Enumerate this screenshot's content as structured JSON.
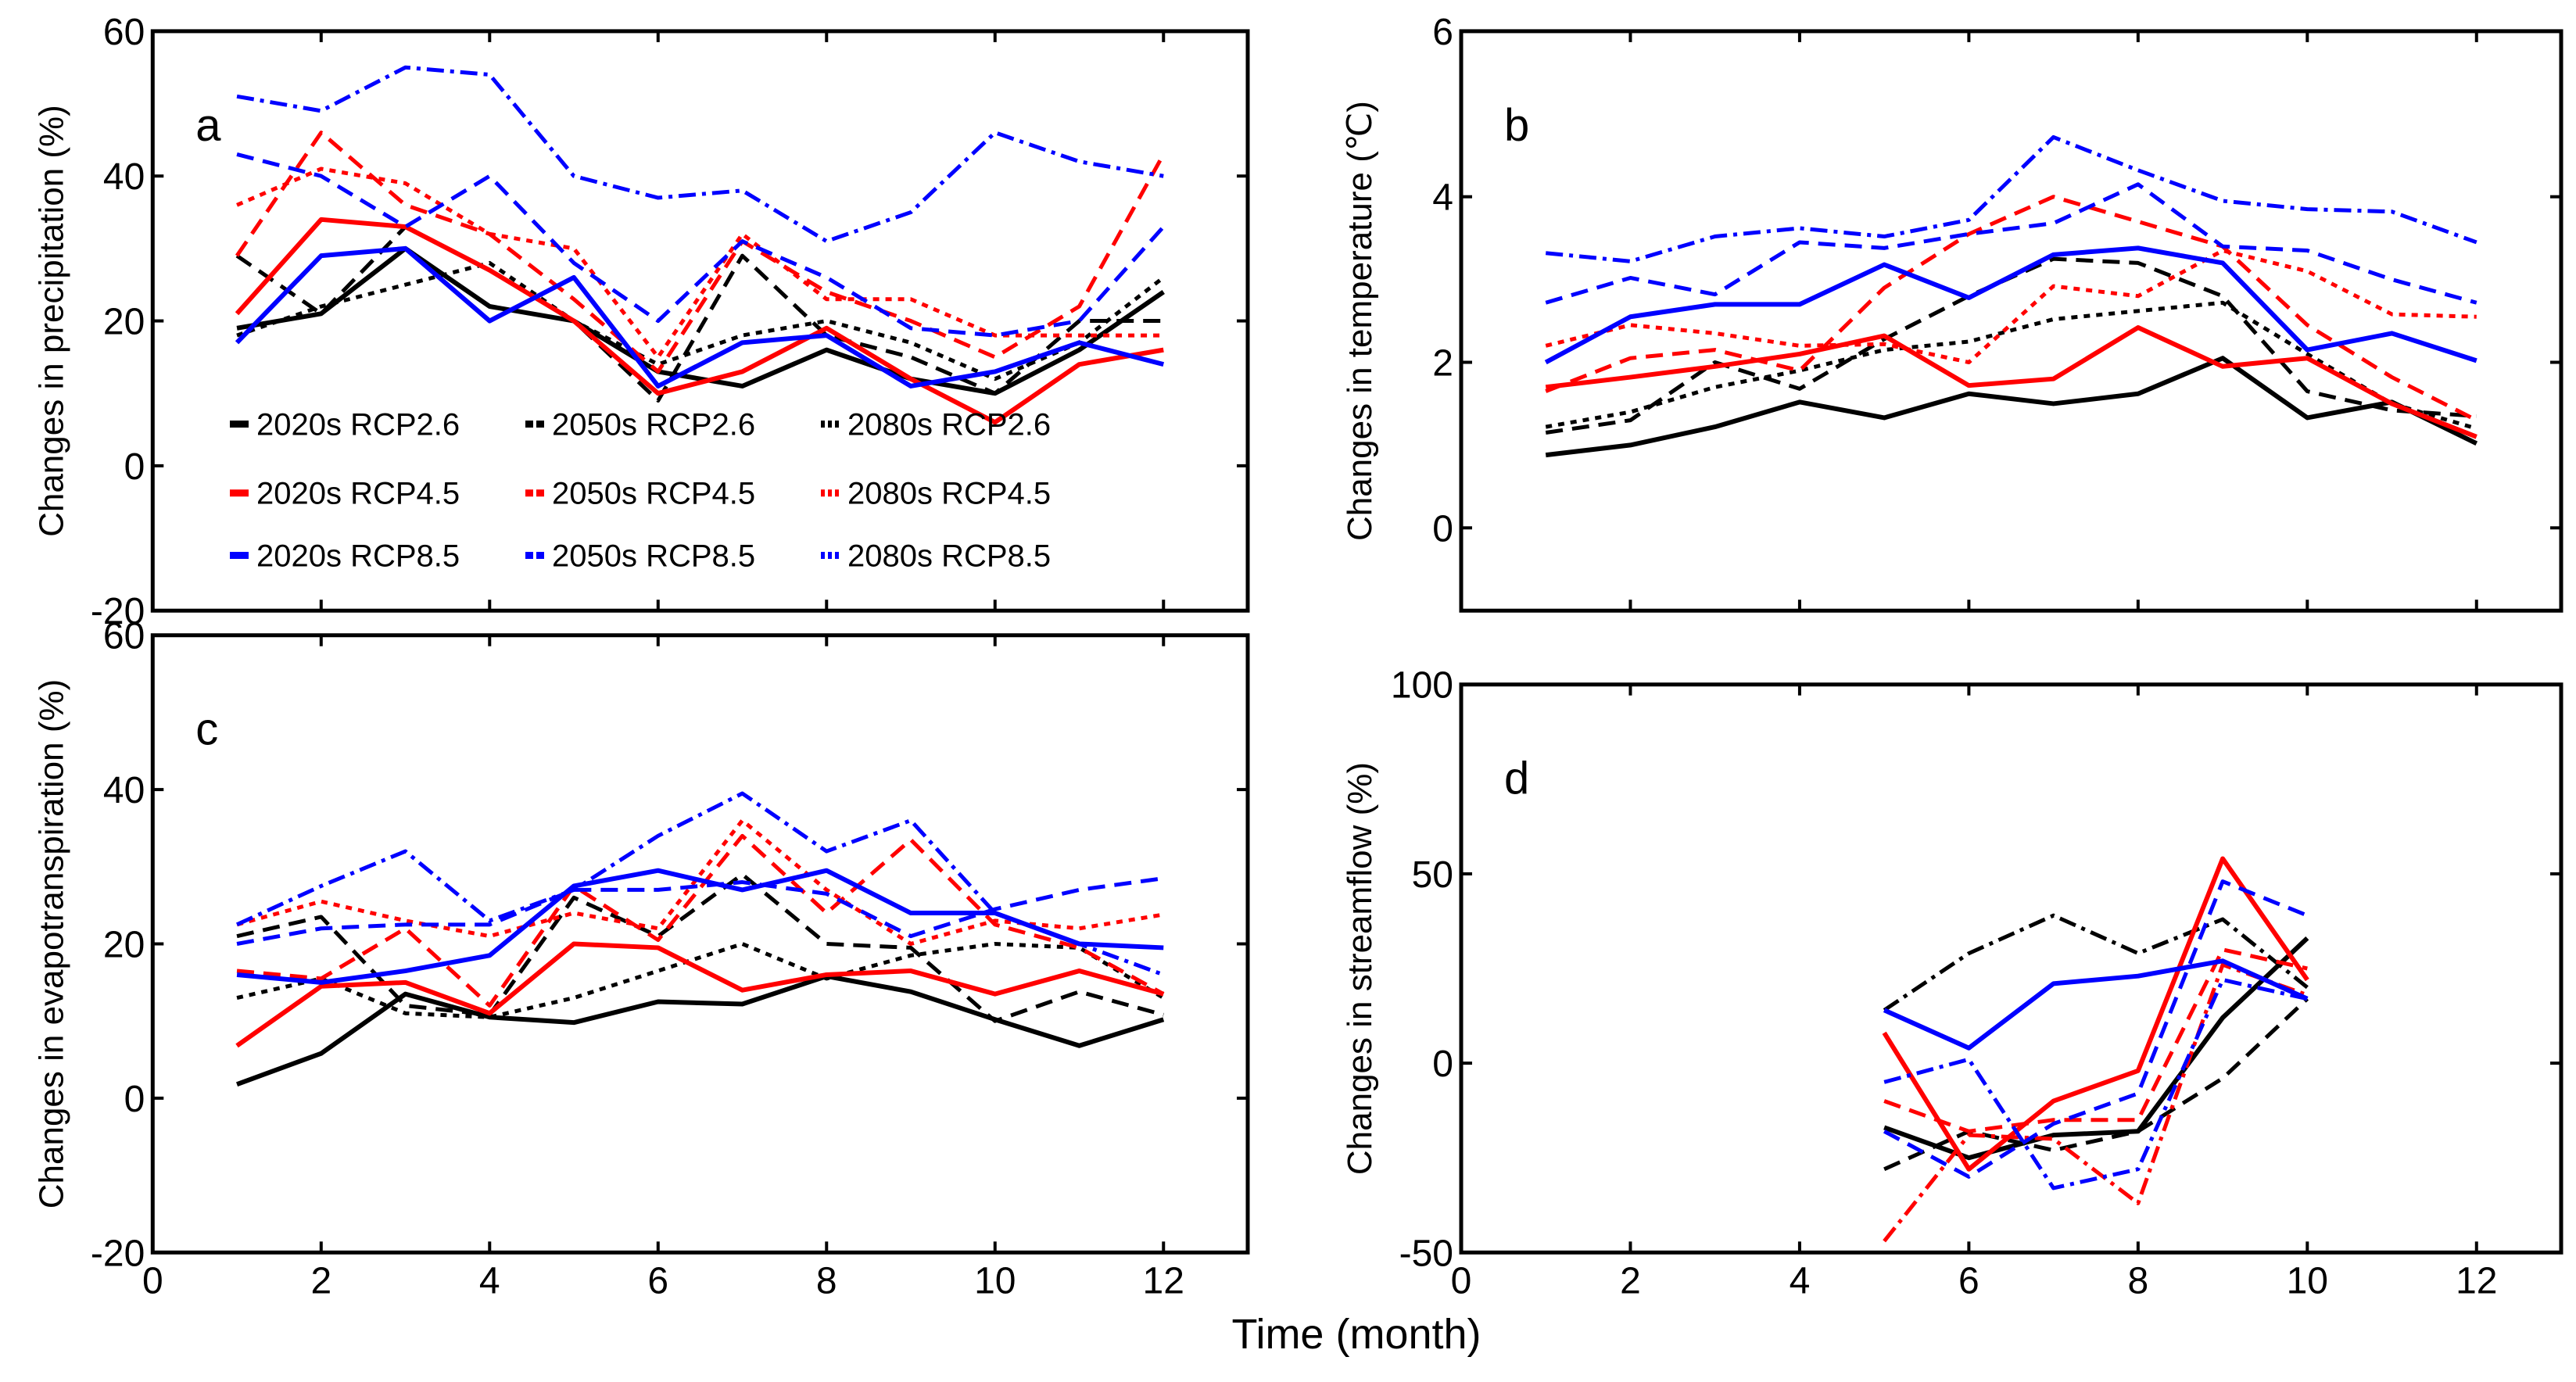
{
  "chart_data": [
    {
      "id": "a",
      "type": "line",
      "panel_letter": "a",
      "ylabel": "Changes in precipitation (%)",
      "xlabel": "",
      "xlim": [
        0,
        13
      ],
      "ylim": [
        -20,
        60
      ],
      "xticks": [
        0,
        2,
        4,
        6,
        8,
        10,
        12
      ],
      "yticks": [
        -20,
        0,
        20,
        40,
        60
      ],
      "show_xtick_labels": false,
      "legend": "inside-lower-left",
      "x": [
        1,
        2,
        3,
        4,
        5,
        6,
        7,
        8,
        9,
        10,
        11,
        12
      ],
      "series": [
        {
          "name": "2020s RCP2.6",
          "color": "#000000",
          "style": "solid",
          "values": [
            19,
            21,
            30,
            22,
            20,
            13,
            11,
            16,
            12,
            10,
            16,
            24
          ]
        },
        {
          "name": "2050s RCP2.6",
          "color": "#000000",
          "style": "dashed",
          "values": [
            29,
            21,
            33,
            27,
            20,
            9,
            29,
            18,
            15,
            10,
            20,
            20
          ]
        },
        {
          "name": "2080s RCP2.6",
          "color": "#000000",
          "style": "dotted",
          "values": [
            18,
            22,
            25,
            28,
            20,
            14,
            18,
            20,
            17,
            12,
            17,
            26
          ]
        },
        {
          "name": "2020s RCP4.5",
          "color": "#ff0000",
          "style": "solid",
          "values": [
            21,
            34,
            33,
            27,
            20,
            10,
            13,
            19,
            12,
            6,
            14,
            16
          ]
        },
        {
          "name": "2050s RCP4.5",
          "color": "#ff0000",
          "style": "dashed",
          "values": [
            29,
            46,
            36,
            32,
            23,
            13,
            31,
            24,
            20,
            15,
            22,
            43
          ]
        },
        {
          "name": "2080s RCP4.5",
          "color": "#ff0000",
          "style": "dotted",
          "values": [
            36,
            41,
            39,
            32,
            30,
            15,
            32,
            23,
            23,
            18,
            18,
            18
          ]
        },
        {
          "name": "2020s RCP8.5",
          "color": "#0000ff",
          "style": "solid",
          "values": [
            17,
            29,
            30,
            20,
            26,
            11,
            17,
            18,
            11,
            13,
            17,
            14
          ]
        },
        {
          "name": "2050s RCP8.5",
          "color": "#0000ff",
          "style": "dashed",
          "values": [
            43,
            40,
            33,
            40,
            28,
            20,
            31,
            26,
            19,
            18,
            20,
            33
          ]
        },
        {
          "name": "2080s RCP8.5",
          "color": "#0000ff",
          "style": "dashdot",
          "values": [
            51,
            49,
            55,
            54,
            40,
            37,
            38,
            31,
            35,
            46,
            42,
            40
          ]
        }
      ]
    },
    {
      "id": "b",
      "type": "line",
      "panel_letter": "b",
      "ylabel": "Changes in temperature (℃)",
      "xlabel": "",
      "xlim": [
        0,
        13
      ],
      "ylim": [
        -1,
        6
      ],
      "xticks": [
        0,
        2,
        4,
        6,
        8,
        10,
        12
      ],
      "yticks": [
        0,
        2,
        4,
        6
      ],
      "show_xtick_labels": false,
      "x": [
        1,
        2,
        3,
        4,
        5,
        6,
        7,
        8,
        9,
        10,
        11,
        12
      ],
      "series": [
        {
          "name": "2020s RCP2.6",
          "color": "#000000",
          "style": "solid",
          "values": [
            0.88,
            1.0,
            1.22,
            1.52,
            1.33,
            1.62,
            1.5,
            1.62,
            2.05,
            1.33,
            1.52,
            1.02
          ]
        },
        {
          "name": "2050s RCP2.6",
          "color": "#000000",
          "style": "dashed",
          "values": [
            1.15,
            1.3,
            2.0,
            1.68,
            2.28,
            2.8,
            3.25,
            3.2,
            2.8,
            1.65,
            1.42,
            1.35
          ]
        },
        {
          "name": "2080s RCP2.6",
          "color": "#000000",
          "style": "dotted",
          "values": [
            1.22,
            1.4,
            1.7,
            1.9,
            2.15,
            2.25,
            2.52,
            2.62,
            2.72,
            2.1,
            1.5,
            1.2
          ]
        },
        {
          "name": "2020s RCP4.5",
          "color": "#ff0000",
          "style": "solid",
          "values": [
            1.7,
            1.82,
            1.95,
            2.1,
            2.32,
            1.72,
            1.8,
            2.42,
            1.95,
            2.05,
            1.5,
            1.1
          ]
        },
        {
          "name": "2050s RCP4.5",
          "color": "#ff0000",
          "style": "dashed",
          "values": [
            1.65,
            2.05,
            2.15,
            1.9,
            2.9,
            3.55,
            4.0,
            3.7,
            3.4,
            2.45,
            1.82,
            1.3
          ]
        },
        {
          "name": "2080s RCP4.5",
          "color": "#ff0000",
          "style": "dotted",
          "values": [
            2.2,
            2.45,
            2.35,
            2.2,
            2.22,
            2.0,
            2.92,
            2.8,
            3.35,
            3.1,
            2.58,
            2.55
          ]
        },
        {
          "name": "2020s RCP8.5",
          "color": "#0000ff",
          "style": "solid",
          "values": [
            2.0,
            2.55,
            2.7,
            2.7,
            3.18,
            2.78,
            3.3,
            3.38,
            3.2,
            2.15,
            2.35,
            2.02
          ]
        },
        {
          "name": "2050s RCP8.5",
          "color": "#0000ff",
          "style": "dashed",
          "values": [
            2.72,
            3.02,
            2.82,
            3.45,
            3.38,
            3.55,
            3.68,
            4.15,
            3.4,
            3.35,
            3.0,
            2.72
          ]
        },
        {
          "name": "2080s RCP8.5",
          "color": "#0000ff",
          "style": "dashdot",
          "values": [
            3.32,
            3.22,
            3.52,
            3.62,
            3.52,
            3.72,
            4.72,
            4.32,
            3.95,
            3.85,
            3.82,
            3.45
          ]
        }
      ]
    },
    {
      "id": "c",
      "type": "line",
      "panel_letter": "c",
      "ylabel": "Changes in evapotranspiration (%)",
      "xlabel": "",
      "xlim": [
        0,
        13
      ],
      "ylim": [
        -20,
        60
      ],
      "xticks": [
        0,
        2,
        4,
        6,
        8,
        10,
        12
      ],
      "yticks": [
        -20,
        0,
        20,
        40,
        60
      ],
      "show_xtick_labels": true,
      "x": [
        1,
        2,
        3,
        4,
        5,
        6,
        7,
        8,
        9,
        10,
        11,
        12
      ],
      "series": [
        {
          "name": "2020s RCP2.6",
          "color": "#000000",
          "style": "solid",
          "values": [
            1.8,
            5.8,
            13.5,
            10.5,
            9.8,
            12.5,
            12.2,
            15.8,
            13.8,
            10.2,
            6.8,
            10.2
          ]
        },
        {
          "name": "2050s RCP2.6",
          "color": "#000000",
          "style": "dashed",
          "values": [
            21,
            23.5,
            12,
            10.8,
            26,
            21,
            29,
            20,
            19.5,
            10,
            13.8,
            10.8
          ]
        },
        {
          "name": "2080s RCP2.6",
          "color": "#000000",
          "style": "dotted",
          "values": [
            13,
            15.5,
            11,
            10.5,
            13,
            16.5,
            20,
            15.5,
            18.5,
            20,
            19.5,
            13
          ]
        },
        {
          "name": "2020s RCP4.5",
          "color": "#ff0000",
          "style": "solid",
          "values": [
            6.8,
            14.5,
            15,
            11,
            20,
            19.5,
            14,
            16,
            16.5,
            13.5,
            16.5,
            13.5
          ]
        },
        {
          "name": "2050s RCP4.5",
          "color": "#ff0000",
          "style": "dashed",
          "values": [
            16.5,
            15.5,
            22,
            12,
            27.5,
            20.5,
            34,
            24,
            33.5,
            22.5,
            19.5,
            13.5
          ]
        },
        {
          "name": "2080s RCP4.5",
          "color": "#ff0000",
          "style": "dotted",
          "values": [
            22.5,
            25.5,
            23,
            21,
            24,
            22,
            36,
            27,
            20,
            23,
            22,
            23.8
          ]
        },
        {
          "name": "2020s RCP8.5",
          "color": "#0000ff",
          "style": "solid",
          "values": [
            16,
            15,
            16.5,
            18.5,
            27.5,
            29.5,
            27,
            29.5,
            24,
            24,
            20,
            19.5
          ]
        },
        {
          "name": "2050s RCP8.5",
          "color": "#0000ff",
          "style": "dashed",
          "values": [
            20,
            22,
            22.5,
            22.5,
            27,
            27,
            28,
            26.5,
            21,
            24.5,
            27,
            28.5
          ]
        },
        {
          "name": "2080s RCP8.5",
          "color": "#0000ff",
          "style": "dashdot",
          "values": [
            22.5,
            27.5,
            32,
            23,
            27,
            34,
            39.5,
            32,
            36,
            24,
            20,
            16
          ]
        }
      ]
    },
    {
      "id": "d",
      "type": "line",
      "panel_letter": "d",
      "ylabel": "Changes in streamflow (%)",
      "xlabel": "",
      "xlim": [
        0,
        13
      ],
      "ylim": [
        -50,
        100
      ],
      "xticks": [
        0,
        2,
        4,
        6,
        8,
        10,
        12
      ],
      "yticks": [
        -50,
        0,
        50,
        100
      ],
      "show_xtick_labels": true,
      "x": [
        5,
        6,
        7,
        8,
        9,
        10
      ],
      "series": [
        {
          "name": "2020s RCP2.6",
          "color": "#000000",
          "style": "solid",
          "values": [
            -17,
            -25,
            -19,
            -18,
            12,
            33
          ]
        },
        {
          "name": "2050s RCP2.6",
          "color": "#000000",
          "style": "dashed",
          "values": [
            -28,
            -18,
            -23,
            -18,
            -4,
            17
          ]
        },
        {
          "name": "2080s RCP2.6",
          "color": "#000000",
          "style": "dashdot",
          "values": [
            14,
            29,
            39,
            29,
            38,
            20
          ]
        },
        {
          "name": "2020s RCP4.5",
          "color": "#ff0000",
          "style": "solid",
          "values": [
            8,
            -28,
            -10,
            -2,
            54,
            22
          ]
        },
        {
          "name": "2050s RCP4.5",
          "color": "#ff0000",
          "style": "dashed",
          "values": [
            -10,
            -18,
            -15,
            -15,
            30,
            25
          ]
        },
        {
          "name": "2080s RCP4.5",
          "color": "#ff0000",
          "style": "dashdot",
          "values": [
            -47,
            -19,
            -20,
            -37,
            26,
            18
          ]
        },
        {
          "name": "2020s RCP8.5",
          "color": "#0000ff",
          "style": "solid",
          "values": [
            14,
            4,
            21,
            23,
            27,
            17
          ]
        },
        {
          "name": "2050s RCP8.5",
          "color": "#0000ff",
          "style": "dashed",
          "values": [
            -18,
            -30,
            -16,
            -8,
            48,
            39
          ]
        },
        {
          "name": "2080s RCP8.5",
          "color": "#0000ff",
          "style": "dashdot",
          "values": [
            -5,
            1,
            -33,
            -28,
            22,
            17
          ]
        }
      ]
    }
  ],
  "figure": {
    "shared_xlabel": "Time (month)",
    "legend_entries": [
      [
        "2020s RCP2.6",
        "2050s RCP2.6",
        "2080s RCP2.6"
      ],
      [
        "2020s RCP4.5",
        "2050s RCP4.5",
        "2080s RCP4.5"
      ],
      [
        "2020s RCP8.5",
        "2050s RCP8.5",
        "2080s RCP8.5"
      ]
    ],
    "legend_colors": [
      "#000000",
      "#ff0000",
      "#0000ff"
    ],
    "legend_styles": [
      "solid",
      "dashed",
      "dotted"
    ]
  }
}
